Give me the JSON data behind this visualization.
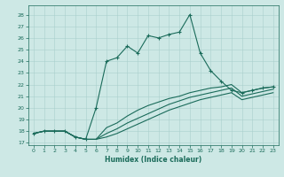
{
  "xlabel": "Humidex (Indice chaleur)",
  "xlim": [
    -0.5,
    23.5
  ],
  "ylim": [
    16.8,
    28.8
  ],
  "yticks": [
    17,
    18,
    19,
    20,
    21,
    22,
    23,
    24,
    25,
    26,
    27,
    28
  ],
  "xticks": [
    0,
    1,
    2,
    3,
    4,
    5,
    6,
    7,
    8,
    9,
    10,
    11,
    12,
    13,
    14,
    15,
    16,
    17,
    18,
    19,
    20,
    21,
    22,
    23
  ],
  "bg_color": "#cde8e5",
  "line_color": "#1a6b5a",
  "grid_color": "#aacfcc",
  "line1_x": [
    0,
    1,
    2,
    3,
    4,
    5,
    6,
    7,
    8,
    9,
    10,
    11,
    12,
    13,
    14,
    15,
    16,
    17,
    18,
    19,
    20,
    21,
    22,
    23
  ],
  "line1_y": [
    17.8,
    18.0,
    18.0,
    18.0,
    17.5,
    17.3,
    20.0,
    24.0,
    24.3,
    25.3,
    24.7,
    26.2,
    26.0,
    26.3,
    26.5,
    28.0,
    24.7,
    23.2,
    22.3,
    21.5,
    21.3,
    21.5,
    21.7,
    21.8
  ],
  "line2_x": [
    0,
    1,
    2,
    3,
    4,
    5,
    6,
    7,
    8,
    9,
    10,
    11,
    12,
    13,
    14,
    15,
    16,
    17,
    18,
    19,
    20,
    21,
    22,
    23
  ],
  "line2_y": [
    17.8,
    18.0,
    18.0,
    18.0,
    17.5,
    17.3,
    17.3,
    18.3,
    18.7,
    19.3,
    19.8,
    20.2,
    20.5,
    20.8,
    21.0,
    21.3,
    21.5,
    21.7,
    21.8,
    22.0,
    21.3,
    21.5,
    21.7,
    21.8
  ],
  "line3_x": [
    0,
    1,
    2,
    3,
    4,
    5,
    6,
    7,
    8,
    9,
    10,
    11,
    12,
    13,
    14,
    15,
    16,
    17,
    18,
    19,
    20,
    21,
    22,
    23
  ],
  "line3_y": [
    17.8,
    18.0,
    18.0,
    18.0,
    17.5,
    17.3,
    17.3,
    17.8,
    18.2,
    18.7,
    19.1,
    19.5,
    19.9,
    20.3,
    20.6,
    20.9,
    21.1,
    21.3,
    21.5,
    21.7,
    21.0,
    21.2,
    21.4,
    21.6
  ],
  "line4_x": [
    0,
    1,
    2,
    3,
    4,
    5,
    6,
    7,
    8,
    9,
    10,
    11,
    12,
    13,
    14,
    15,
    16,
    17,
    18,
    19,
    20,
    21,
    22,
    23
  ],
  "line4_y": [
    17.8,
    18.0,
    18.0,
    18.0,
    17.5,
    17.3,
    17.3,
    17.5,
    17.8,
    18.2,
    18.6,
    19.0,
    19.4,
    19.8,
    20.1,
    20.4,
    20.7,
    20.9,
    21.1,
    21.3,
    20.7,
    20.9,
    21.1,
    21.3
  ]
}
